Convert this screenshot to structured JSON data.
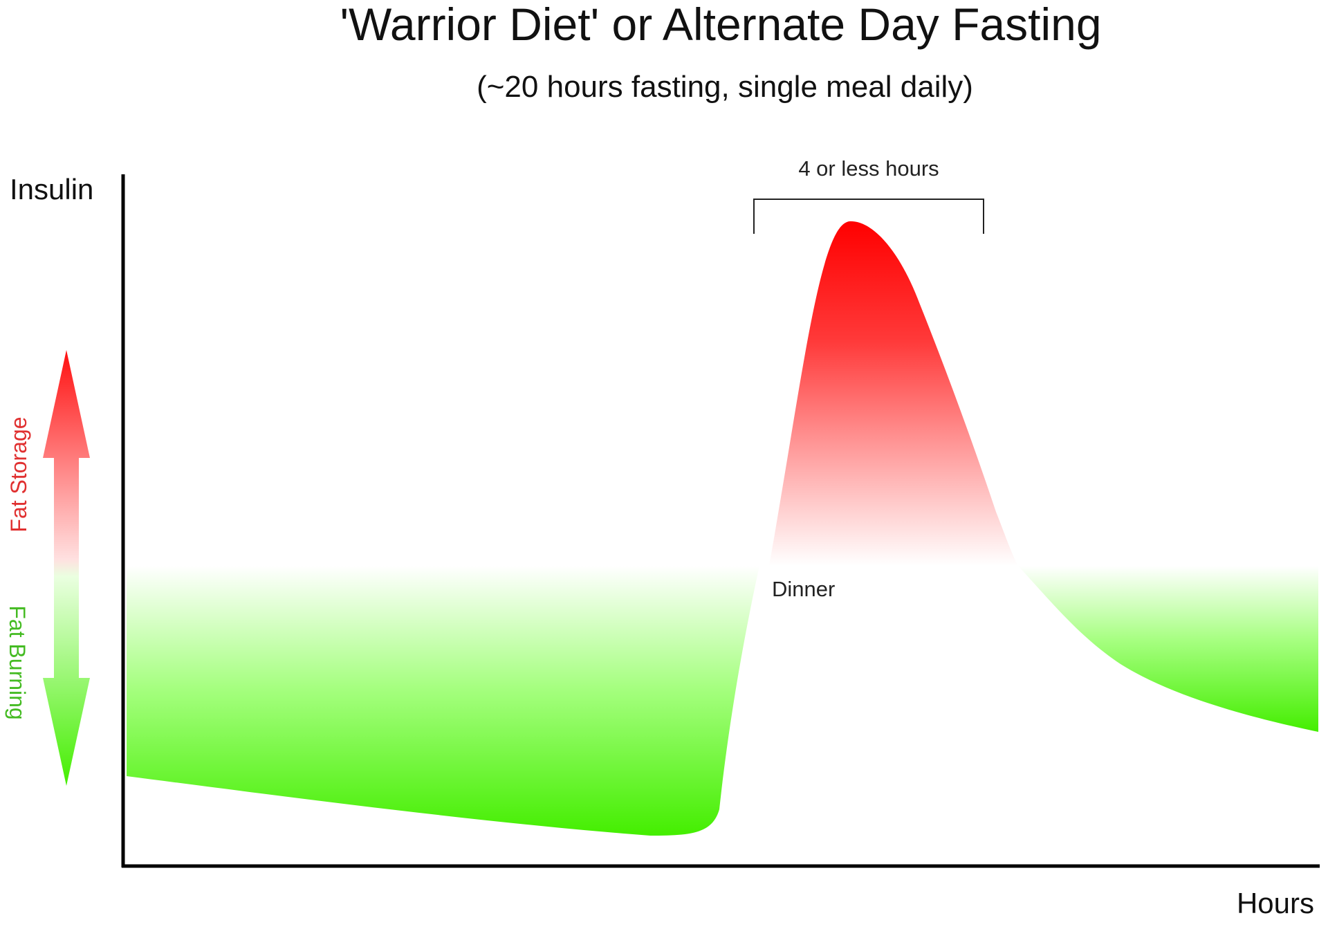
{
  "title": "'Warrior Diet' or Alternate Day Fasting",
  "subtitle": "(~20 hours fasting, single meal daily)",
  "y_axis_label": "Insulin",
  "x_axis_label": "Hours",
  "bracket_label": "4 or less hours",
  "meal_label": "Dinner",
  "side_labels": {
    "upper": "Fat Storage",
    "lower": "Fat Burning"
  },
  "colors": {
    "storage": "#ff0000",
    "burning": "#33ee00",
    "axis": "#000000"
  }
}
